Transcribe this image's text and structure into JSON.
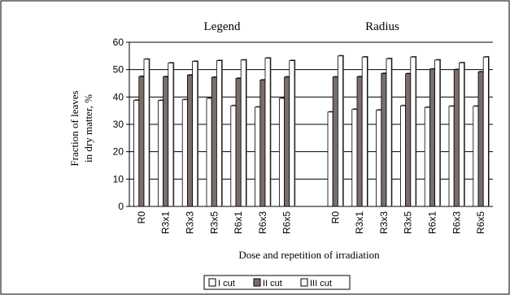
{
  "chart_data": {
    "type": "bar",
    "title": "",
    "panel_labels": [
      "Legend",
      "Radius"
    ],
    "xlabel": "Dose and repetition of irradiation",
    "ylabel_lines": [
      "Fraction of leaves",
      "in dry matter, %"
    ],
    "ylim": [
      0,
      60
    ],
    "yticks": [
      0,
      10,
      20,
      30,
      40,
      50,
      60
    ],
    "grid": true,
    "legend_position": "bottom",
    "categories": [
      "R0",
      "R3x1",
      "R3x3",
      "R3x5",
      "R6x1",
      "R6x3",
      "R6x5"
    ],
    "groups": [
      {
        "label": "Legend",
        "series": [
          {
            "name": "I cut",
            "values": [
              38.8,
              38.7,
              39.0,
              39.5,
              36.8,
              36.3,
              39.5
            ]
          },
          {
            "name": "II cut",
            "values": [
              47.5,
              47.4,
              48.0,
              47.2,
              46.8,
              46.2,
              47.3
            ]
          },
          {
            "name": "III cut",
            "values": [
              53.8,
              52.4,
              53.0,
              53.3,
              53.5,
              54.2,
              53.3
            ]
          }
        ]
      },
      {
        "label": "Radius",
        "series": [
          {
            "name": "I cut",
            "values": [
              34.5,
              35.5,
              35.2,
              36.8,
              36.2,
              36.6,
              36.6
            ]
          },
          {
            "name": "II cut",
            "values": [
              47.3,
              47.4,
              48.6,
              48.5,
              50.2,
              50.0,
              49.2
            ]
          },
          {
            "name": "III cut",
            "values": [
              55.0,
              54.6,
              54.0,
              54.6,
              53.5,
              52.5,
              54.6
            ]
          }
        ]
      }
    ],
    "colors": {
      "I cut": "#ffffff",
      "II cut": "#7a6e6a",
      "III cut": "#ffffff"
    }
  }
}
